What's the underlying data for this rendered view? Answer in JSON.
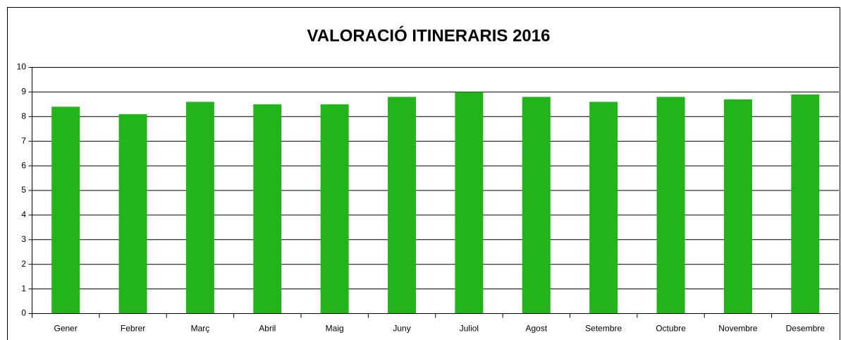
{
  "chart_data": {
    "type": "bar",
    "title": "VALORACIÓ ITINERARIS 2016",
    "categories": [
      "Gener",
      "Febrer",
      "Març",
      "Abril",
      "Maig",
      "Juny",
      "Juliol",
      "Agost",
      "Setembre",
      "Octubre",
      "Novembre",
      "Desembre"
    ],
    "values": [
      8.4,
      8.1,
      8.6,
      8.5,
      8.5,
      8.8,
      9.0,
      8.8,
      8.6,
      8.8,
      8.7,
      8.9
    ],
    "color": "#22b41a",
    "ylim": [
      0,
      10
    ],
    "yticks": [
      0,
      1,
      2,
      3,
      4,
      5,
      6,
      7,
      8,
      9,
      10
    ],
    "grid": true
  }
}
